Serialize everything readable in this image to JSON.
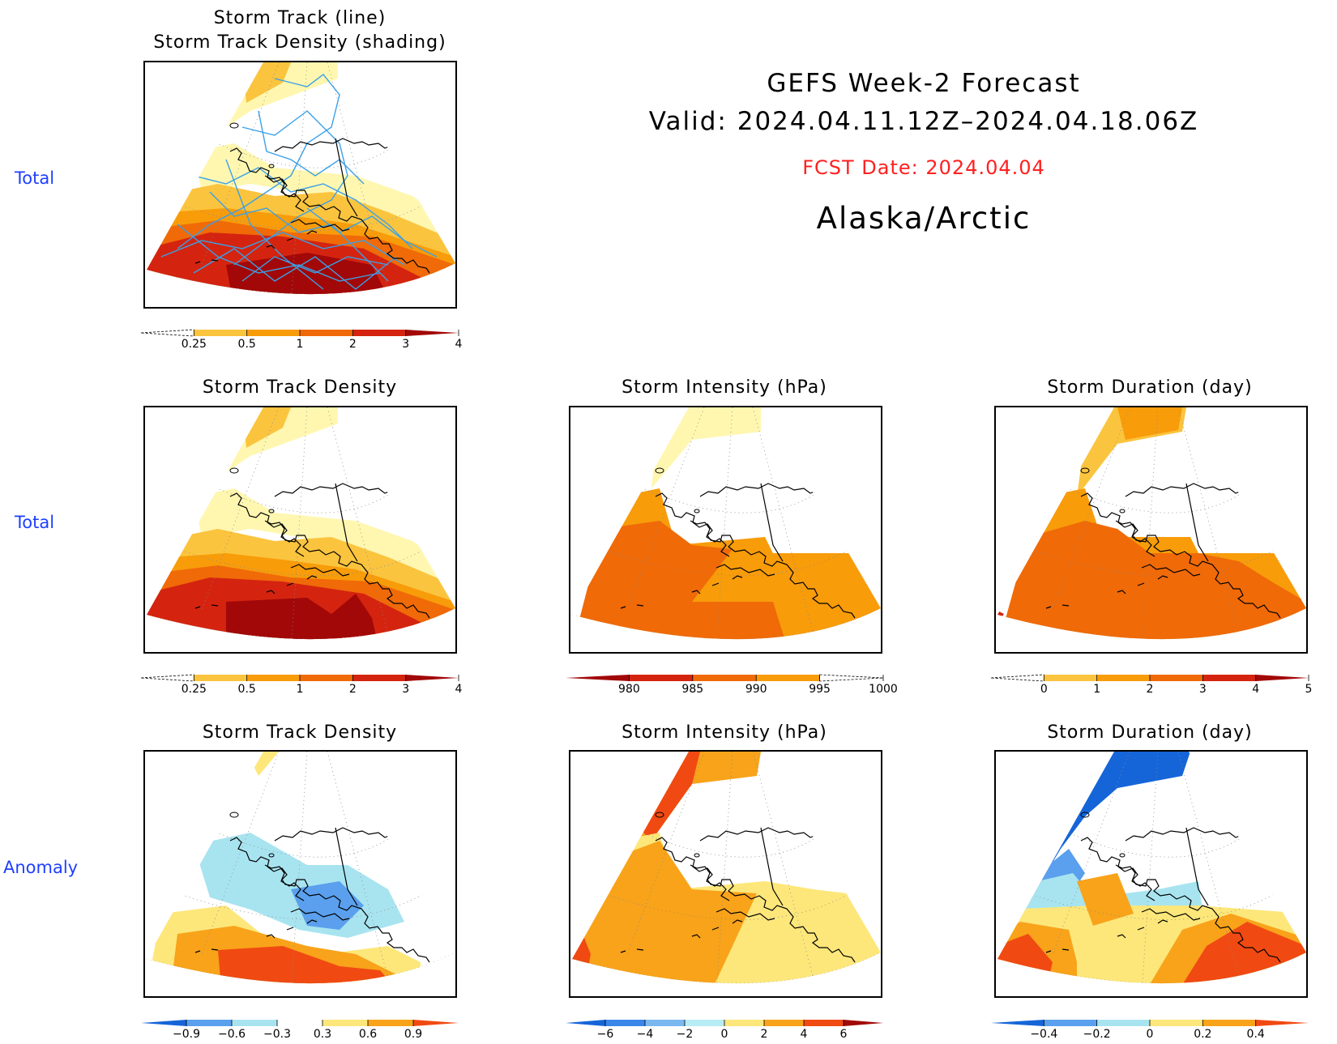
{
  "header": {
    "title": "GEFS Week-2 Forecast",
    "valid": "Valid: 2024.04.11.12Z–2024.04.18.06Z",
    "fcst_date": "FCST Date: 2024.04.04",
    "region": "Alaska/Arctic",
    "fcst_color": "#ff2020"
  },
  "row_labels": [
    "Total",
    "Total",
    "Anomaly"
  ],
  "panels": {
    "top": {
      "title_line1": "Storm Track (line)",
      "title_line2": "Storm Track Density (shading)"
    },
    "mid_density": {
      "title": "Storm Track Density"
    },
    "mid_intensity": {
      "title": "Storm Intensity (hPa)"
    },
    "mid_duration": {
      "title": "Storm Duration (day)"
    },
    "anom_density": {
      "title": "Storm Track Density"
    },
    "anom_intensity": {
      "title": "Storm Intensity (hPa)"
    },
    "anom_duration": {
      "title": "Storm Duration (day)"
    }
  },
  "colorbars": {
    "density_total": {
      "labels": [
        "0.25",
        "0.5",
        "1",
        "2",
        "3",
        "4"
      ],
      "colors": [
        "#fff7b0",
        "#fbc43e",
        "#f89c0a",
        "#f06a08",
        "#d42410",
        "#a20808"
      ]
    },
    "intensity_total": {
      "labels": [
        "980",
        "985",
        "990",
        "995",
        "1000"
      ],
      "colors": [
        "#a20808",
        "#d42410",
        "#f06a08",
        "#f89c0a",
        "#fff7b0"
      ]
    },
    "duration_total": {
      "labels": [
        "0",
        "1",
        "2",
        "3",
        "4",
        "5"
      ],
      "colors": [
        "#fff7b0",
        "#fbc43e",
        "#f89c0a",
        "#f06a08",
        "#d42410",
        "#a20808"
      ]
    },
    "density_anom": {
      "labels": [
        "−0.9",
        "−0.6",
        "−0.3",
        "0.3",
        "0.6",
        "0.9"
      ],
      "colors": [
        "#1565d8",
        "#5aa0ee",
        "#a8e4f0",
        "#ffffff",
        "#fde77a",
        "#f8a31a",
        "#f04a12"
      ]
    },
    "intensity_anom": {
      "labels": [
        "−6",
        "−4",
        "−2",
        "0",
        "2",
        "4",
        "6"
      ],
      "colors": [
        "#1565d8",
        "#3a86e8",
        "#7ab8f0",
        "#b8ecf4",
        "#fde77a",
        "#f8a31a",
        "#f04a12",
        "#a20808"
      ]
    },
    "duration_anom": {
      "labels": [
        "−0.4",
        "−0.2",
        "0",
        "0.2",
        "0.4"
      ],
      "colors": [
        "#1565d8",
        "#5aa0ee",
        "#a8e4f0",
        "#fde77a",
        "#f8a31a",
        "#f04a12"
      ]
    }
  }
}
